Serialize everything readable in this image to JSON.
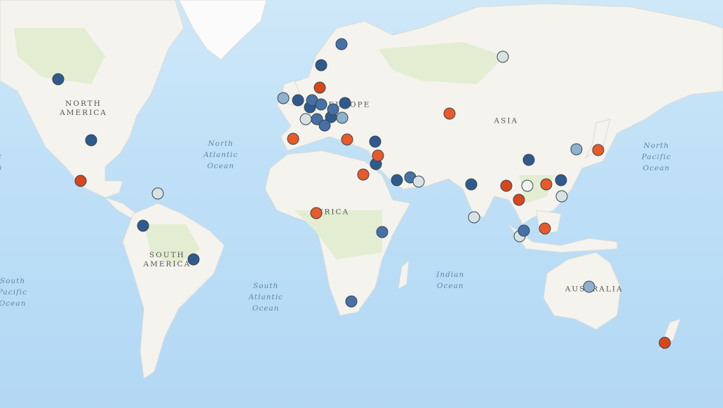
{
  "map": {
    "projection": "web-mercator",
    "continent_labels": [
      {
        "text": "NORTH\nAMERICA",
        "lon": -100,
        "lat": 49
      },
      {
        "text": "SOUTH\nAMERICA",
        "lon": -61,
        "lat": -14
      },
      {
        "text": "EUROPE",
        "lon": 24,
        "lat": 50
      },
      {
        "text": "AFRICA",
        "lon": 15,
        "lat": 8
      },
      {
        "text": "ASIA",
        "lon": 97,
        "lat": 45
      },
      {
        "text": "AUSTRALIA",
        "lon": 138,
        "lat": -27
      }
    ],
    "ocean_labels": [
      {
        "text": "North\nAtlantic\nOcean",
        "lon": -36,
        "lat": 33
      },
      {
        "text": "South\nAtlantic\nOcean",
        "lon": -15,
        "lat": -30
      },
      {
        "text": "North\nPacific\nOcean",
        "lon": 167,
        "lat": 32
      },
      {
        "text": "Indian\nOcean",
        "lon": 71,
        "lat": -23
      },
      {
        "text": "South\nPacific\nOcean",
        "lon": -133,
        "lat": -28
      },
      {
        "text": "c\nn",
        "lon": -139,
        "lat": 30
      }
    ]
  },
  "colors": {
    "dark": "#2f5a8d",
    "mid": "#4670a6",
    "light": "#8db2cf",
    "pale": "#d9e2e2",
    "white": "#f2f3f1",
    "red": "#d8461b",
    "orange": "#e9592a"
  },
  "markers": [
    {
      "lon": -111.8,
      "lat": 57.2,
      "cat": "dark"
    },
    {
      "lon": -96.4,
      "lat": 38.4,
      "cat": "dark"
    },
    {
      "lon": -101.3,
      "lat": 22.2,
      "cat": "red"
    },
    {
      "lon": -65.4,
      "lat": 16.6,
      "cat": "pale"
    },
    {
      "lon": -72.2,
      "lat": 1.8,
      "cat": "dark"
    },
    {
      "lon": -48.7,
      "lat": -13.8,
      "cat": "dark"
    },
    {
      "lon": 20.3,
      "lat": 65,
      "cat": "mid"
    },
    {
      "lon": 10.8,
      "lat": 60.6,
      "cat": "dark"
    },
    {
      "lon": 10.1,
      "lat": 55,
      "cat": "red"
    },
    {
      "lon": -6.9,
      "lat": 52.2,
      "cat": "light"
    },
    {
      "lon": 0,
      "lat": 51.5,
      "cat": "dark"
    },
    {
      "lon": 5.6,
      "lat": 49.4,
      "cat": "dark"
    },
    {
      "lon": 6.5,
      "lat": 51.5,
      "cat": "mid"
    },
    {
      "lon": 10.8,
      "lat": 50.3,
      "cat": "mid"
    },
    {
      "lon": 21.9,
      "lat": 50.7,
      "cat": "dark"
    },
    {
      "lon": 3.6,
      "lat": 45.7,
      "cat": "pale"
    },
    {
      "lon": 15.4,
      "lat": 46.4,
      "cat": "dark"
    },
    {
      "lon": 16.3,
      "lat": 48.8,
      "cat": "mid"
    },
    {
      "lon": 20.6,
      "lat": 46.2,
      "cat": "light"
    },
    {
      "lon": 8.8,
      "lat": 45.7,
      "cat": "mid"
    },
    {
      "lon": 12.4,
      "lat": 43.6,
      "cat": "mid"
    },
    {
      "lon": -2.3,
      "lat": 39,
      "cat": "orange"
    },
    {
      "lon": 22.9,
      "lat": 38.8,
      "cat": "orange"
    },
    {
      "lon": 35.9,
      "lat": 37.9,
      "cat": "dark"
    },
    {
      "lon": 36.3,
      "lat": 29.2,
      "cat": "dark"
    },
    {
      "lon": 37.3,
      "lat": 32.6,
      "cat": "orange"
    },
    {
      "lon": 30.4,
      "lat": 24.8,
      "cat": "orange"
    },
    {
      "lon": 46.1,
      "lat": 22.4,
      "cat": "dark"
    },
    {
      "lon": 52.3,
      "lat": 23.6,
      "cat": "mid"
    },
    {
      "lon": 56.2,
      "lat": 21.8,
      "cat": "pale"
    },
    {
      "lon": 8.5,
      "lat": 7.6,
      "cat": "orange"
    },
    {
      "lon": 39.2,
      "lat": -1.1,
      "cat": "mid"
    },
    {
      "lon": 24.8,
      "lat": -31.6,
      "cat": "mid"
    },
    {
      "lon": 95.4,
      "lat": 62.4,
      "cat": "pale"
    },
    {
      "lon": 70.6,
      "lat": 47.4,
      "cat": "orange"
    },
    {
      "lon": 107.5,
      "lat": 31,
      "cat": "dark"
    },
    {
      "lon": 129.7,
      "lat": 35,
      "cat": "light"
    },
    {
      "lon": 139.9,
      "lat": 34.8,
      "cat": "orange"
    },
    {
      "lon": 80.7,
      "lat": 20.6,
      "cat": "dark"
    },
    {
      "lon": 97.1,
      "lat": 20,
      "cat": "red"
    },
    {
      "lon": 106.9,
      "lat": 20,
      "cat": "white"
    },
    {
      "lon": 115.7,
      "lat": 20.6,
      "cat": "orange"
    },
    {
      "lon": 122.5,
      "lat": 22.4,
      "cat": "dark"
    },
    {
      "lon": 122.9,
      "lat": 15.4,
      "cat": "pale"
    },
    {
      "lon": 102.9,
      "lat": 13.8,
      "cat": "red"
    },
    {
      "lon": 82,
      "lat": 5.8,
      "cat": "pale"
    },
    {
      "lon": 103.3,
      "lat": -3.1,
      "cat": "pale"
    },
    {
      "lon": 105.2,
      "lat": -0.5,
      "cat": "mid"
    },
    {
      "lon": 115,
      "lat": 0.5,
      "cat": "orange"
    },
    {
      "lon": 135.6,
      "lat": -25.6,
      "cat": "light"
    },
    {
      "lon": 170.9,
      "lat": -46.6,
      "cat": "red"
    }
  ]
}
